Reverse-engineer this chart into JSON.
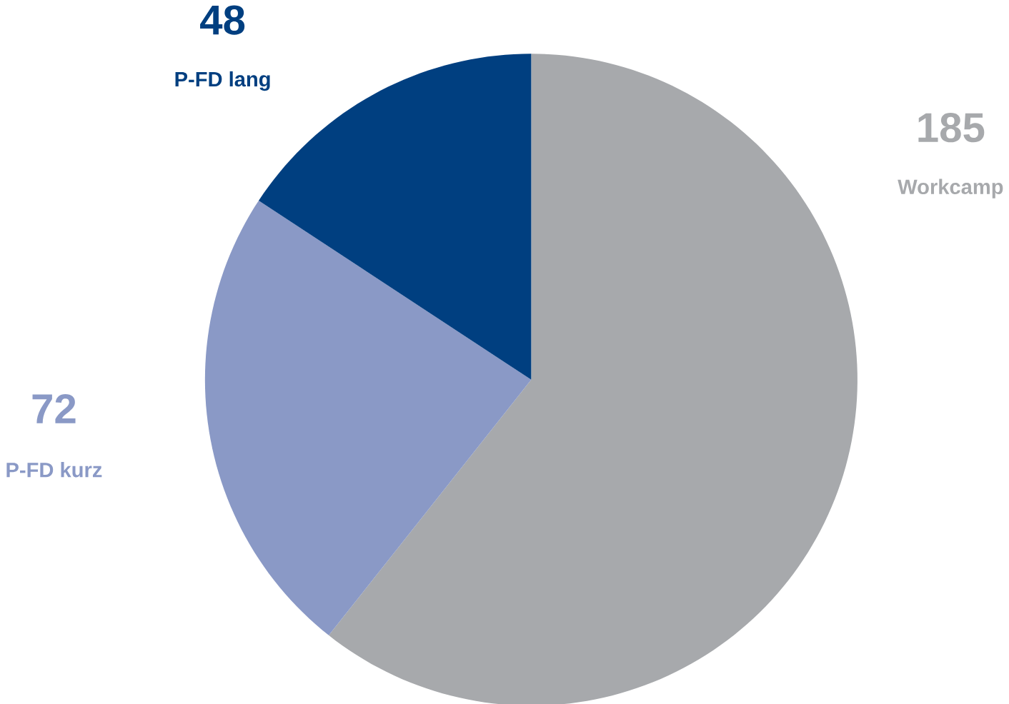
{
  "chart_data": {
    "type": "pie",
    "categories": [
      "Workcamp",
      "P-FD kurz",
      "P-FD lang"
    ],
    "values": [
      185,
      72,
      48
    ],
    "colors": [
      "#a7a9ac",
      "#8a99c6",
      "#003f80"
    ],
    "data_labels": true
  }
}
